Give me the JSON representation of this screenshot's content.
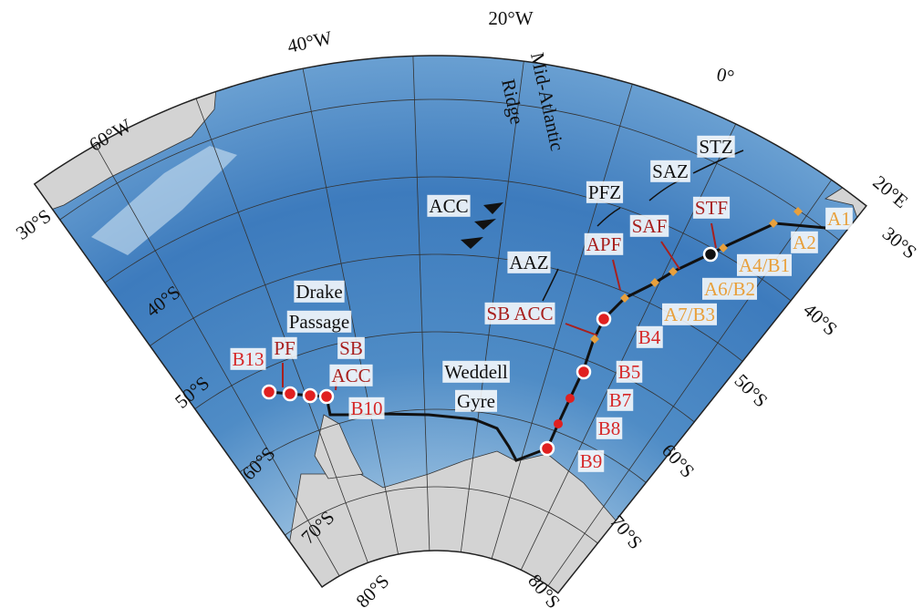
{
  "longitudes": [
    "20°W",
    "40°W",
    "60°W",
    "0°",
    "20°E"
  ],
  "latitudes_left": [
    "30°S",
    "40°S",
    "50°S",
    "60°S",
    "70°S",
    "80°S"
  ],
  "latitudes_right": [
    "30°S",
    "40°S",
    "50°S",
    "60°S",
    "70°S",
    "80°S"
  ],
  "features": {
    "ridge": [
      "Mid-Atlantic",
      "Ridge"
    ],
    "drake": [
      "Drake",
      "Passage"
    ],
    "weddell": [
      "Weddell",
      "Gyre"
    ],
    "acc": "ACC"
  },
  "zones": [
    "STZ",
    "SAZ",
    "PFZ",
    "AAZ"
  ],
  "fronts": [
    "STF",
    "SAF",
    "APF",
    "SB ACC",
    "PF",
    "SB",
    "ACC"
  ],
  "stations": [
    "A1",
    "A2",
    "A4/B1",
    "A6/B2",
    "A7/B3",
    "B4",
    "B5",
    "B7",
    "B8",
    "B9",
    "B10",
    "B13"
  ]
}
